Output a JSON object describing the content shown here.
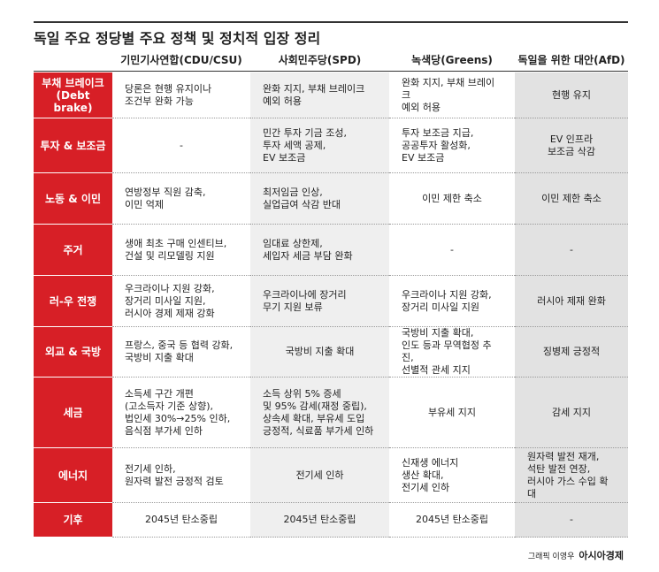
{
  "header": {
    "title": "독일 주요 정당별 주요 정책 및 정치적 입장 정리"
  },
  "table": {
    "columns": [
      "기민기사연합(CDU/CSU)",
      "사회민주당(SPD)",
      "녹색당(Greens)",
      "독일을 위한 대안(AfD)"
    ],
    "rows": [
      {
        "label": "부채 브레이크\n(Debt brake)",
        "cells": [
          "당론은 현행 유지이나\n조건부 완화 가능",
          "완화 지지, 부채 브레이크\n예외 허용",
          "완화 지지, 부채 브레이크\n예외 허용",
          "현행 유지"
        ]
      },
      {
        "label": "투자 & 보조금",
        "cells": [
          "-",
          "민간 투자 기금 조성,\n투자 세액 공제,\nEV 보조금",
          "투자 보조금 지급,\n공공투자 활성화,\nEV 보조금",
          "EV 인프라\n보조금 삭감"
        ]
      },
      {
        "label": "노동 & 이민",
        "cells": [
          "연방정부 직원 감축,\n이민 억제",
          "최저임금 인상,\n실업급여 삭감 반대",
          "이민 제한 축소",
          "이민 제한 축소"
        ]
      },
      {
        "label": "주거",
        "cells": [
          "생애 최초 구매 인센티브,\n건설 및 리모델링 지원",
          "임대료 상한제,\n세입자 세금 부담 완화",
          "-",
          "-"
        ]
      },
      {
        "label": "러-우 전쟁",
        "cells": [
          "우크라이나 지원 강화,\n장거리 미사일 지원,\n러시아 경제 제재 강화",
          "우크라이나에 장거리\n무기 지원 보류",
          "우크라이나 지원 강화,\n장거리 미사일 지원",
          "러시아 제재 완화"
        ]
      },
      {
        "label": "외교 & 국방",
        "cells": [
          "프랑스, 중국 등 협력 강화,\n국방비 지출 확대",
          "국방비 지출 확대",
          "국방비 지출 확대,\n인도 등과 무역협정 추진,\n선별적 관세 지지",
          "징병제 긍정적"
        ]
      },
      {
        "label": "세금",
        "cells": [
          "소득세 구간 개편\n(고소득자 기준 상향),\n법인세 30%→25% 인하,\n음식점 부가세 인하",
          "소득 상위 5% 증세\n및 95% 감세(재정 중립),\n상속세 확대, 부유세 도입\n긍정적, 식료품 부가세 인하",
          "부유세 지지",
          "감세 지지"
        ]
      },
      {
        "label": "에너지",
        "cells": [
          "전기세 인하,\n원자력 발전 긍정적 검토",
          "전기세 인하",
          "신재생 에너지\n생산 확대,\n전기세 인하",
          "원자력 발전 재개,\n석탄 발전 연장,\n러시아 가스 수입 확대"
        ]
      },
      {
        "label": "기후",
        "cells": [
          "2045년 탄소중립",
          "2045년 탄소중립",
          "2045년 탄소중립",
          "-"
        ]
      }
    ]
  },
  "footer": {
    "credit": "그래픽 이영우",
    "brand": "아시아경제"
  }
}
